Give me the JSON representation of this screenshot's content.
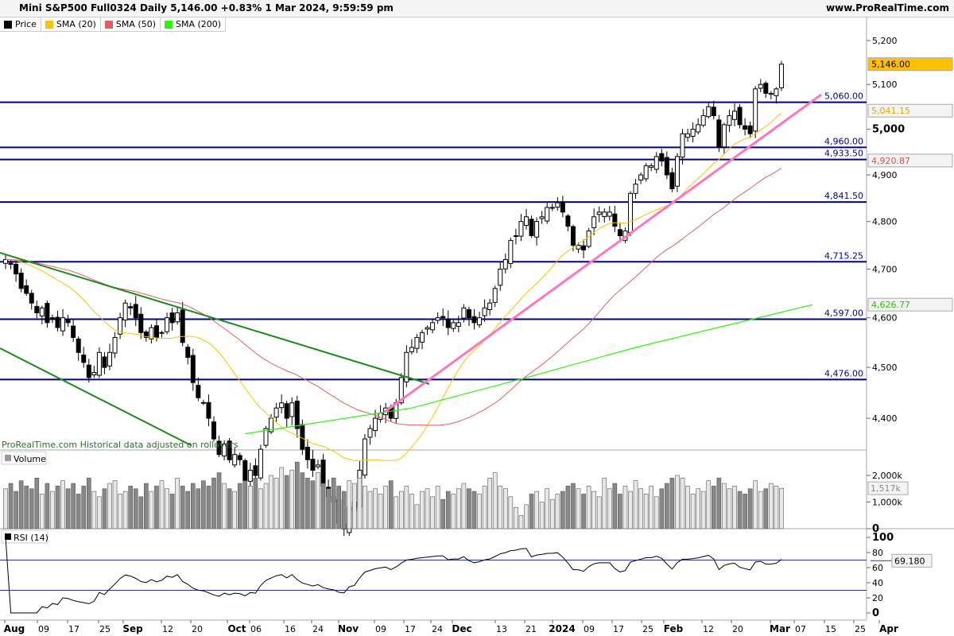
{
  "header": {
    "title": "Mini S&P500 Full0324 Daily 5,146.00 +0.83% 1 Mar 2024, 9:59:59 pm",
    "site": "www.ProRealTime.com"
  },
  "legend": [
    {
      "label": "Price",
      "color": "#000000"
    },
    {
      "label": "SMA (20)",
      "color": "#ffc000"
    },
    {
      "label": "SMA (50)",
      "color": "#e06060"
    },
    {
      "label": "SMA (200)",
      "color": "#33ee11"
    }
  ],
  "footer_note": "ProRealTime.com Historical data adjusted on rollovers",
  "panels": {
    "volume_label": "Volume",
    "rsi_label": "RSI (14)"
  },
  "chart_data": {
    "type": "candlestick",
    "price_axis": {
      "scale": "log",
      "range": [
        4330,
        5240
      ],
      "ticks": [
        "5,200",
        "5,100",
        "5,000",
        "4,900",
        "4,800",
        "4,700",
        "4,600",
        "4,500",
        "4,400"
      ],
      "tick_values": [
        5200,
        5100,
        5000,
        4900,
        4800,
        4700,
        4600,
        4500,
        4400
      ]
    },
    "last_price": "5,146.00",
    "sma20_last": "5,041.15",
    "sma50_last": "4,920.87",
    "sma200_last": "4,626.77",
    "levels": [
      {
        "value": 5060,
        "label": "5,060.00"
      },
      {
        "value": 4960,
        "label": "4,960.00"
      },
      {
        "value": 4933.5,
        "label": "4,933.50"
      },
      {
        "value": 4841.5,
        "label": "4,841.50"
      },
      {
        "value": 4715.25,
        "label": "4,715.25"
      },
      {
        "value": 4597,
        "label": "4,597.00"
      },
      {
        "value": 4476,
        "label": "4,476.00"
      }
    ],
    "closes": [
      4720,
      4710,
      4690,
      4660,
      4650,
      4630,
      4610,
      4620,
      4590,
      4600,
      4580,
      4600,
      4590,
      4560,
      4530,
      4510,
      4480,
      4490,
      4530,
      4500,
      4530,
      4560,
      4600,
      4630,
      4620,
      4600,
      4570,
      4560,
      4580,
      4560,
      4570,
      4600,
      4590,
      4610,
      4550,
      4520,
      4470,
      4440,
      4430,
      4400,
      4360,
      4330,
      4350,
      4320,
      4330,
      4320,
      4280,
      4300,
      4290,
      4340,
      4380,
      4400,
      4420,
      4430,
      4400,
      4430,
      4380,
      4340,
      4320,
      4300,
      4310,
      4270,
      4250,
      4240,
      4200,
      4190,
      4230,
      4240,
      4300,
      4360,
      4380,
      4400,
      4410,
      4420,
      4400,
      4430,
      4480,
      4530,
      4540,
      4560,
      4570,
      4580,
      4590,
      4600,
      4600,
      4580,
      4590,
      4590,
      4620,
      4600,
      4590,
      4600,
      4620,
      4630,
      4660,
      4700,
      4720,
      4760,
      4770,
      4800,
      4810,
      4770,
      4800,
      4810,
      4830,
      4830,
      4840,
      4820,
      4790,
      4750,
      4750,
      4740,
      4780,
      4810,
      4820,
      4820,
      4820,
      4790,
      4770,
      4780,
      4860,
      4880,
      4900,
      4920,
      4920,
      4940,
      4930,
      4900,
      4870,
      4940,
      4990,
      4990,
      5000,
      5010,
      5030,
      5050,
      5030,
      4960,
      5010,
      5030,
      5040,
      5010,
      5000,
      4990,
      5090,
      5100,
      5080,
      5080,
      5090,
      5146
    ],
    "sma200": [
      {
        "date": "2023-10-02",
        "value": 4370
      },
      {
        "date": "2023-11-15",
        "value": 4420
      },
      {
        "date": "2023-12-15",
        "value": 4480
      },
      {
        "date": "2024-01-15",
        "value": 4540
      },
      {
        "date": "2024-03-01",
        "value": 4626.77
      }
    ],
    "volume_axis": {
      "ticks": [
        "2,000k",
        "1,000k",
        "0"
      ],
      "tick_values": [
        2000,
        1000,
        0
      ],
      "last": "1,517k"
    },
    "volume_k": [
      1500,
      1700,
      1400,
      1800,
      1600,
      1500,
      1900,
      1300,
      1700,
      1400,
      1600,
      1800,
      1500,
      1700,
      1300,
      1600,
      1900,
      1400,
      1200,
      1500,
      1700,
      1800,
      1300,
      1400,
      1600,
      1500,
      1200,
      1700,
      1400,
      1600,
      1800,
      1500,
      1300,
      1900,
      1600,
      1400,
      1700,
      1500,
      1800,
      1600,
      1900,
      2100,
      1700,
      1500,
      1400,
      1700,
      1800,
      1600,
      1900,
      1500,
      1700,
      2000,
      1900,
      2300,
      2000,
      2200,
      2500,
      2100,
      1900,
      1800,
      2100,
      1700,
      1500,
      1900,
      1600,
      1400,
      1800,
      1700,
      1900,
      1600,
      1400,
      1500,
      1300,
      1600,
      1800,
      1200,
      1400,
      1600,
      1300,
      900,
      1400,
      1500,
      1200,
      1600,
      1100,
      1400,
      1300,
      1500,
      1700,
      1500,
      1400,
      1300,
      1600,
      1900,
      2100,
      1600,
      1500,
      1200,
      800,
      500,
      900,
      1300,
      1400,
      1000,
      1500,
      1100,
      1300,
      1400,
      1600,
      1700,
      1500,
      1300,
      1600,
      1400,
      1200,
      1900,
      1500,
      1700,
      1300,
      1600,
      1400,
      1800,
      1500,
      1300,
      1600,
      1200,
      1500,
      1700,
      1900,
      2000,
      1900,
      1600,
      1300,
      1500,
      1400,
      1800,
      1600,
      1900,
      1700,
      1500,
      1600,
      1400,
      1300,
      1500,
      1800,
      1400,
      1500,
      1700,
      1600,
      1517
    ],
    "rsi_axis": {
      "ticks": [
        "100",
        "80",
        "60",
        "40",
        "20",
        "0"
      ],
      "tick_values": [
        100,
        80,
        60,
        40,
        20,
        0
      ],
      "levels": [
        70,
        30
      ],
      "last": "69.180"
    },
    "date_ticks": [
      "Aug",
      "09",
      "17",
      "25",
      "Sep",
      "12",
      "20",
      "Oct",
      "06",
      "16",
      "24",
      "Nov",
      "09",
      "17",
      "24",
      "Dec",
      "13",
      "21",
      "2024",
      "09",
      "17",
      "25",
      "Feb",
      "12",
      "20",
      "Mar",
      "07",
      "15",
      "25",
      "Apr"
    ]
  }
}
